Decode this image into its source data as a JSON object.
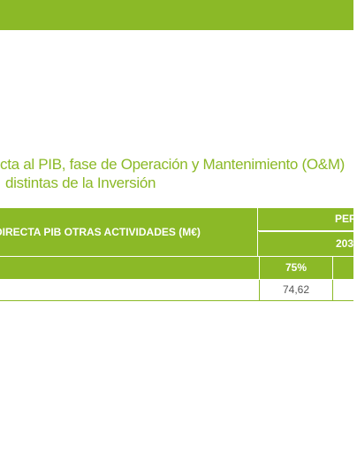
{
  "caption": {
    "line1": "cta al PIB, fase de Operación y Mantenimiento (O&M)",
    "line2": "distintas de la Inversión"
  },
  "table": {
    "header_left": "DIRECTA PIB OTRAS ACTIVIDADES (M€)",
    "header_period": "PER",
    "header_year": "203",
    "sub_header_pct": "75%",
    "row_value": "74,62"
  },
  "colors": {
    "accent_green": "#8bb927",
    "text_grey": "#555555"
  }
}
